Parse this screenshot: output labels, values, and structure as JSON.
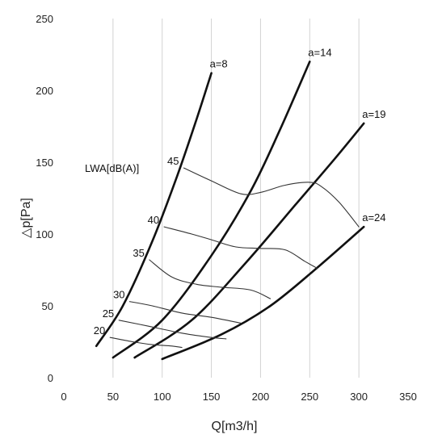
{
  "chart_data": {
    "type": "line",
    "xlabel": "Q[m3/h]",
    "ylabel": "△p[Pa]",
    "xlim": [
      0,
      350
    ],
    "ylim": [
      0,
      250
    ],
    "xticks": [
      0,
      50,
      100,
      150,
      200,
      250,
      300,
      350
    ],
    "yticks": [
      0,
      50,
      100,
      150,
      200,
      250
    ],
    "grid": "vertical",
    "fan_curves": [
      {
        "name": "a=8",
        "points": [
          [
            33,
            22
          ],
          [
            60,
            50
          ],
          [
            90,
            95
          ],
          [
            115,
            140
          ],
          [
            135,
            180
          ],
          [
            150,
            212
          ]
        ]
      },
      {
        "name": "a=14",
        "points": [
          [
            50,
            14
          ],
          [
            100,
            40
          ],
          [
            150,
            85
          ],
          [
            190,
            130
          ],
          [
            220,
            173
          ],
          [
            250,
            220
          ]
        ]
      },
      {
        "name": "a=19",
        "points": [
          [
            72,
            14
          ],
          [
            130,
            40
          ],
          [
            185,
            80
          ],
          [
            235,
            120
          ],
          [
            275,
            152
          ],
          [
            305,
            177
          ]
        ]
      },
      {
        "name": "a=24",
        "points": [
          [
            100,
            13
          ],
          [
            160,
            30
          ],
          [
            210,
            50
          ],
          [
            260,
            78
          ],
          [
            305,
            105
          ]
        ]
      }
    ],
    "noise_title": "LWA[dB(A)]",
    "noise_curves": [
      {
        "name": "45",
        "points": [
          [
            122,
            146
          ],
          [
            150,
            137
          ],
          [
            180,
            128
          ],
          [
            200,
            129
          ],
          [
            225,
            134
          ],
          [
            250,
            136
          ],
          [
            262,
            133
          ],
          [
            280,
            122
          ],
          [
            300,
            105
          ]
        ]
      },
      {
        "name": "40",
        "points": [
          [
            102,
            105
          ],
          [
            130,
            100
          ],
          [
            150,
            96
          ],
          [
            175,
            91
          ],
          [
            200,
            90
          ],
          [
            225,
            89
          ],
          [
            245,
            81
          ],
          [
            258,
            76
          ]
        ]
      },
      {
        "name": "35",
        "points": [
          [
            87,
            82
          ],
          [
            110,
            70
          ],
          [
            135,
            65
          ],
          [
            160,
            63
          ],
          [
            190,
            61
          ],
          [
            210,
            55
          ]
        ]
      },
      {
        "name": "30",
        "points": [
          [
            67,
            53
          ],
          [
            90,
            50
          ],
          [
            120,
            45
          ],
          [
            150,
            42
          ],
          [
            180,
            38
          ]
        ]
      },
      {
        "name": "25",
        "points": [
          [
            56,
            40
          ],
          [
            85,
            36
          ],
          [
            120,
            31
          ],
          [
            150,
            28
          ],
          [
            165,
            27
          ]
        ]
      },
      {
        "name": "20",
        "points": [
          [
            47,
            28
          ],
          [
            70,
            25
          ],
          [
            90,
            23
          ],
          [
            110,
            22
          ],
          [
            120,
            21
          ]
        ]
      }
    ]
  }
}
